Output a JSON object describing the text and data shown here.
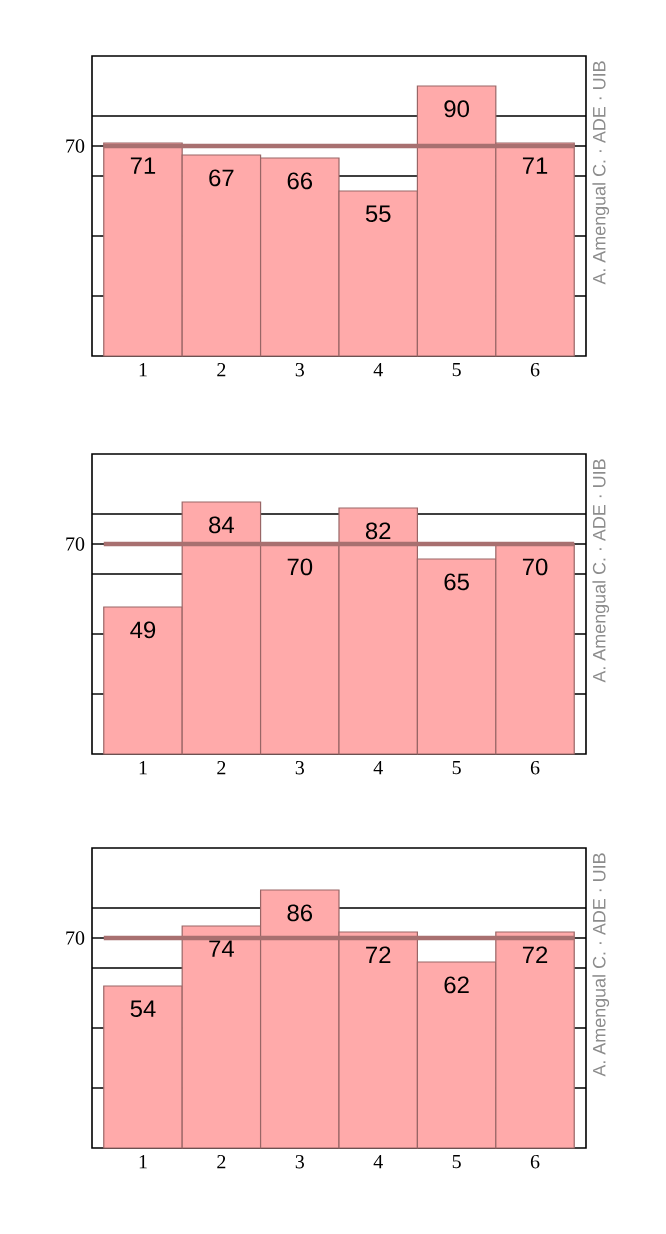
{
  "chart_data": [
    {
      "type": "bar",
      "categories": [
        "1",
        "2",
        "3",
        "4",
        "5",
        "6"
      ],
      "values": [
        71,
        67,
        66,
        55,
        90,
        71
      ],
      "color": "#ffaaaa",
      "data_labels": true,
      "ylim": [
        0,
        100
      ],
      "yticks": [
        {
          "value": 20,
          "label": null
        },
        {
          "value": 40,
          "label": null
        },
        {
          "value": 60,
          "label": null
        },
        70,
        {
          "value": 80,
          "label": null
        }
      ],
      "grid": "y",
      "ref_lines": [
        {
          "axis": "y",
          "value": 70,
          "color": "#a87070"
        }
      ],
      "annotations": [
        "A. Amengual C. · ADE · UIB"
      ]
    },
    {
      "type": "bar",
      "categories": [
        "1",
        "2",
        "3",
        "4",
        "5",
        "6"
      ],
      "values": [
        49,
        84,
        70,
        82,
        65,
        70
      ],
      "color": "#ffaaaa",
      "data_labels": true,
      "ylim": [
        0,
        100
      ],
      "yticks": [
        {
          "value": 20,
          "label": null
        },
        {
          "value": 40,
          "label": null
        },
        {
          "value": 60,
          "label": null
        },
        70,
        {
          "value": 80,
          "label": null
        }
      ],
      "grid": "y",
      "ref_lines": [
        {
          "axis": "y",
          "value": 70,
          "color": "#a87070"
        }
      ],
      "annotations": [
        "A. Amengual C. · ADE · UIB"
      ]
    },
    {
      "type": "bar",
      "categories": [
        "1",
        "2",
        "3",
        "4",
        "5",
        "6"
      ],
      "values": [
        54,
        74,
        86,
        72,
        62,
        72
      ],
      "color": "#ffaaaa",
      "data_labels": true,
      "ylim": [
        0,
        100
      ],
      "yticks": [
        {
          "value": 20,
          "label": null
        },
        {
          "value": 40,
          "label": null
        },
        {
          "value": 60,
          "label": null
        },
        70,
        {
          "value": 80,
          "label": null
        }
      ],
      "grid": "y",
      "ref_lines": [
        {
          "axis": "y",
          "value": 70,
          "color": "#a87070"
        }
      ],
      "annotations": [
        "A. Amengual C. · ADE · UIB"
      ]
    }
  ]
}
